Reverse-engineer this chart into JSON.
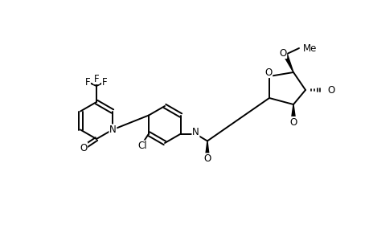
{
  "background_color": "#ffffff",
  "line_color": "#000000",
  "line_width": 1.4,
  "fig_width": 4.6,
  "fig_height": 3.0,
  "dpi": 100,
  "xlim": [
    0,
    46
  ],
  "ylim": [
    0,
    30
  ]
}
